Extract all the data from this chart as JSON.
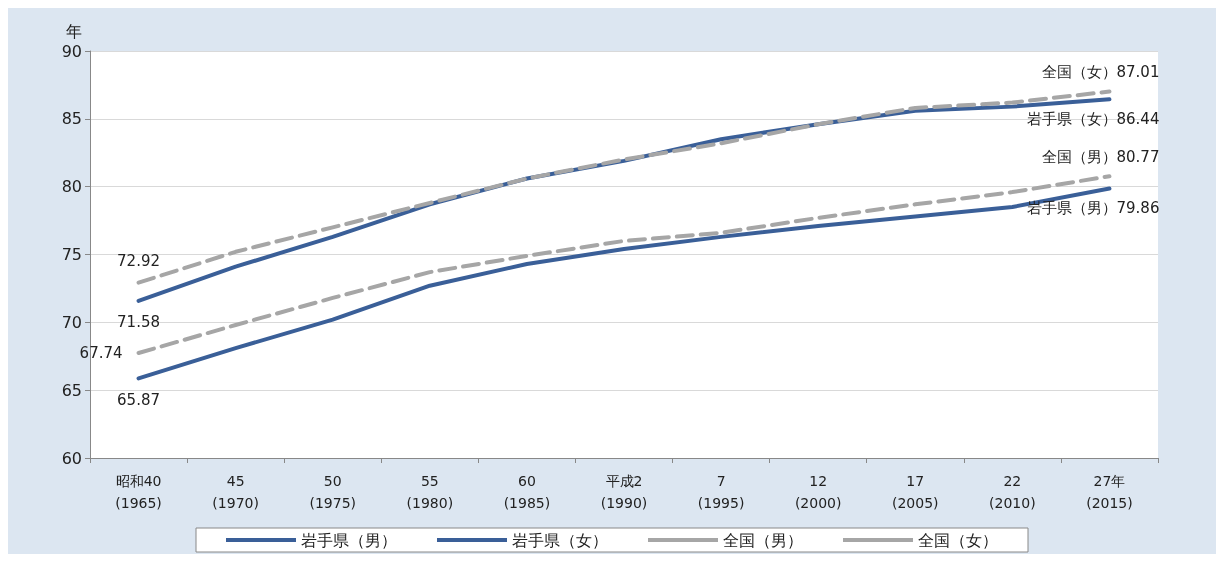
{
  "chart_data": {
    "type": "line",
    "ylabel": "年",
    "categories": [
      "昭和40\n(1965)",
      "45\n(1970)",
      "50\n(1975)",
      "55\n(1980)",
      "60\n(1985)",
      "平成2\n(1990)",
      "7\n(1995)",
      "12\n(2000)",
      "17\n(2005)",
      "22\n(2010)",
      "27年\n(2015)"
    ],
    "series": [
      {
        "name": "岩手県（男）",
        "color": "#3a5f98",
        "line_style": "solid",
        "values": [
          65.87,
          68.1,
          70.2,
          72.7,
          74.3,
          75.4,
          76.3,
          77.1,
          77.8,
          78.5,
          79.86
        ],
        "value_labels": [
          "65.87",
          null,
          null,
          null,
          null,
          null,
          null,
          null,
          null,
          null,
          "岩手県（男）79.86"
        ]
      },
      {
        "name": "岩手県（女）",
        "color": "#3a5f98",
        "line_style": "solid",
        "values": [
          71.58,
          74.1,
          76.3,
          78.7,
          80.6,
          81.9,
          83.5,
          84.6,
          85.6,
          85.9,
          86.44
        ],
        "value_labels": [
          "71.58",
          null,
          null,
          null,
          null,
          null,
          null,
          null,
          null,
          null,
          "岩手県（女）86.44"
        ]
      },
      {
        "name": "全国（男）",
        "color": "#a6a6a6",
        "line_style": "dashed",
        "values": [
          67.74,
          69.8,
          71.8,
          73.7,
          74.9,
          76.0,
          76.6,
          77.7,
          78.7,
          79.6,
          80.77
        ],
        "value_labels": [
          "67.74",
          null,
          null,
          null,
          null,
          null,
          null,
          null,
          null,
          null,
          "全国（男）80.77"
        ]
      },
      {
        "name": "全国（女）",
        "color": "#a6a6a6",
        "line_style": "dashed",
        "values": [
          72.92,
          75.2,
          77.0,
          78.8,
          80.6,
          82.0,
          83.2,
          84.6,
          85.8,
          86.2,
          87.01
        ],
        "value_labels": [
          "72.92",
          null,
          null,
          null,
          null,
          null,
          null,
          null,
          null,
          null,
          "全国（女）87.01"
        ]
      }
    ],
    "ylim": [
      60,
      90
    ],
    "yticks": [
      60,
      65,
      70,
      75,
      80,
      85,
      90
    ],
    "grid": "y",
    "legend": "bottom",
    "marker": "none"
  }
}
